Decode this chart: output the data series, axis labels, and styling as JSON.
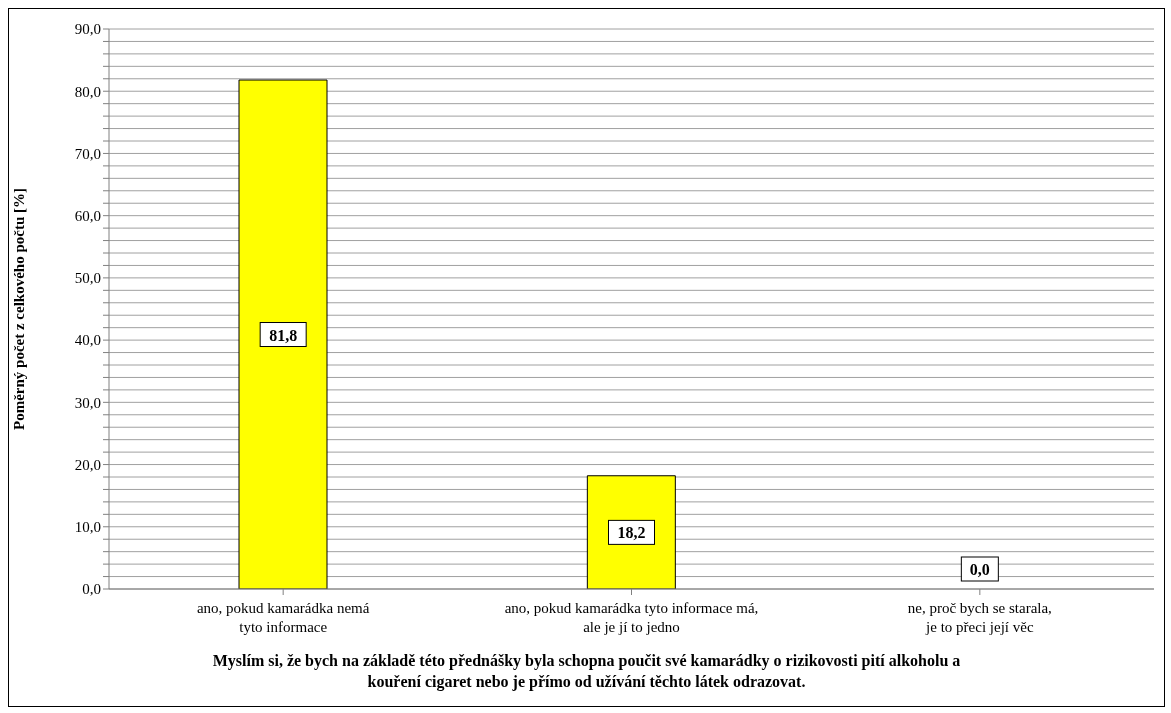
{
  "chart_data": {
    "type": "bar",
    "xlabel": "Myslím si, že bych na základě této přednášky byla schopna poučit své kamarádky o rizikovosti pití alkoholu a\nkouření cigaret nebo je přímo od užívání těchto látek odrazovat.",
    "ylabel": "Poměrný počet z celkového počtu [%]",
    "categories": [
      "ano, pokud kamarádka nemá\ntyto informace",
      "ano, pokud kamarádka tyto informace má,\nale je jí to jedno",
      "ne, proč bych se starala,\nje to přeci její věc"
    ],
    "values": [
      81.8,
      18.2,
      0.0
    ],
    "color": "#ffff00",
    "value_labels": [
      "81,8",
      "18,2",
      "0,0"
    ],
    "ylim": [
      0,
      90
    ],
    "yticks": [
      {
        "value": 0,
        "label": "0,0"
      },
      {
        "value": 2,
        "label": null
      },
      {
        "value": 4,
        "label": null
      },
      {
        "value": 6,
        "label": null
      },
      {
        "value": 8,
        "label": null
      },
      {
        "value": 10,
        "label": "10,0"
      },
      {
        "value": 12,
        "label": null
      },
      {
        "value": 14,
        "label": null
      },
      {
        "value": 16,
        "label": null
      },
      {
        "value": 18,
        "label": null
      },
      {
        "value": 20,
        "label": "20,0"
      },
      {
        "value": 22,
        "label": null
      },
      {
        "value": 24,
        "label": null
      },
      {
        "value": 26,
        "label": null
      },
      {
        "value": 28,
        "label": null
      },
      {
        "value": 30,
        "label": "30,0"
      },
      {
        "value": 32,
        "label": null
      },
      {
        "value": 34,
        "label": null
      },
      {
        "value": 36,
        "label": null
      },
      {
        "value": 38,
        "label": null
      },
      {
        "value": 40,
        "label": "40,0"
      },
      {
        "value": 42,
        "label": null
      },
      {
        "value": 44,
        "label": null
      },
      {
        "value": 46,
        "label": null
      },
      {
        "value": 48,
        "label": null
      },
      {
        "value": 50,
        "label": "50,0"
      },
      {
        "value": 52,
        "label": null
      },
      {
        "value": 54,
        "label": null
      },
      {
        "value": 56,
        "label": null
      },
      {
        "value": 58,
        "label": null
      },
      {
        "value": 60,
        "label": "60,0"
      },
      {
        "value": 62,
        "label": null
      },
      {
        "value": 64,
        "label": null
      },
      {
        "value": 66,
        "label": null
      },
      {
        "value": 68,
        "label": null
      },
      {
        "value": 70,
        "label": "70,0"
      },
      {
        "value": 72,
        "label": null
      },
      {
        "value": 74,
        "label": null
      },
      {
        "value": 76,
        "label": null
      },
      {
        "value": 78,
        "label": null
      },
      {
        "value": 80,
        "label": "80,0"
      },
      {
        "value": 82,
        "label": null
      },
      {
        "value": 84,
        "label": null
      },
      {
        "value": 86,
        "label": null
      },
      {
        "value": 88,
        "label": null
      },
      {
        "value": 90,
        "label": "90,0"
      }
    ],
    "grid": "y",
    "legend": false
  }
}
